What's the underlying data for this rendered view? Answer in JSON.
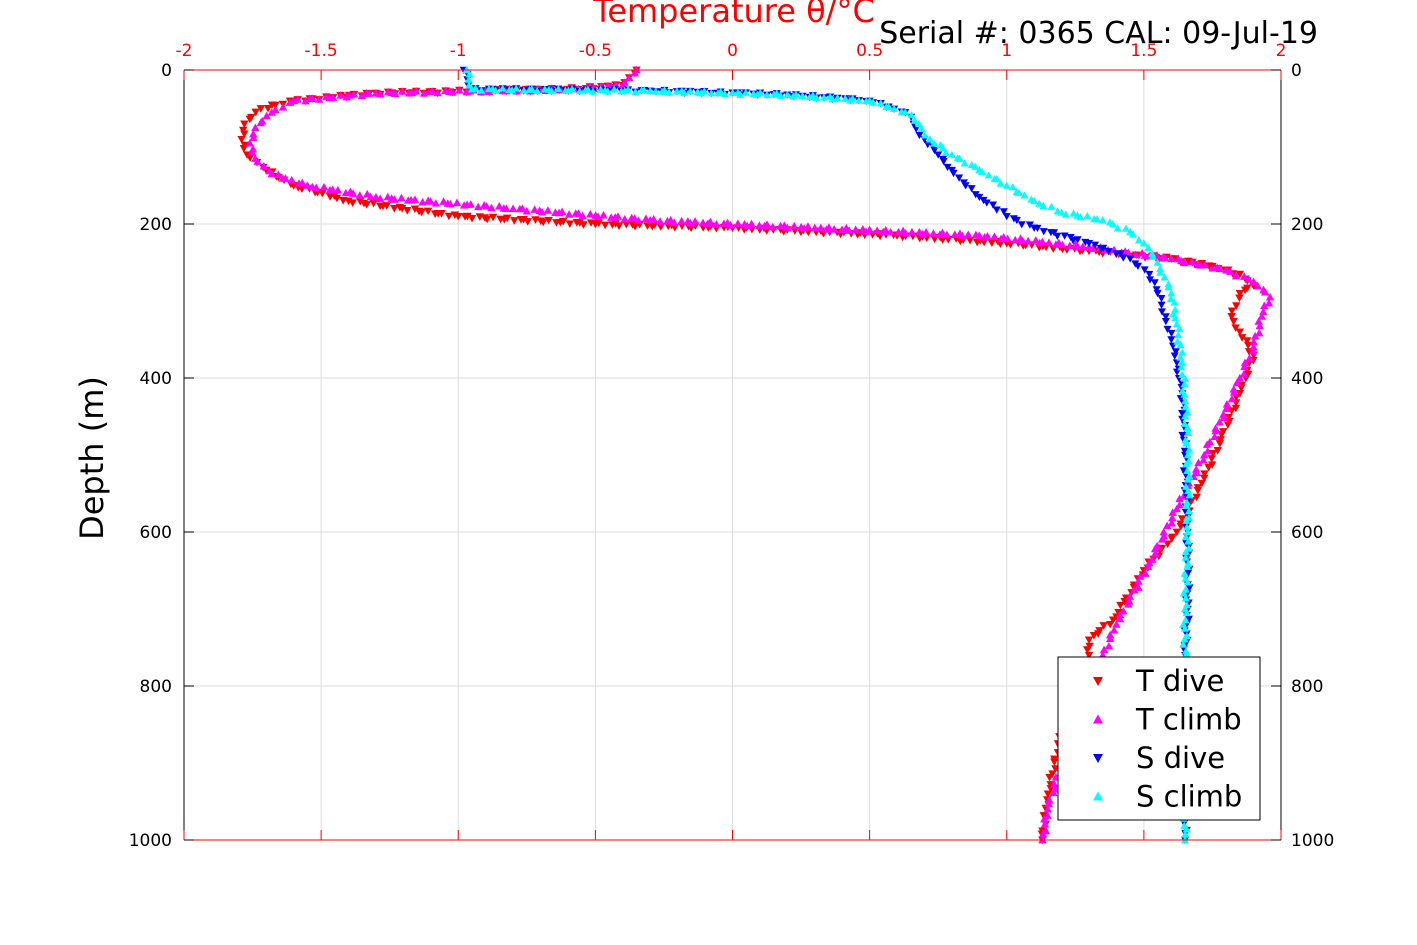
{
  "chart_data": {
    "type": "scatter",
    "title": "Temperature θ/°C",
    "annotation": "Serial #: 0365  CAL: 09-Jul-19",
    "xlabel": "Temperature θ/°C",
    "ylabel": "Depth (m)",
    "xlim": [
      -2,
      2
    ],
    "ylim": [
      0,
      1000
    ],
    "y_reversed": true,
    "grid": true,
    "legend_position": "bottom-right",
    "x_ticks": [
      "-2",
      "-1.5",
      "-1",
      "-0.5",
      "0",
      "0.5",
      "1",
      "1.5",
      "2"
    ],
    "x_tick_values": [
      -2,
      -1.5,
      -1,
      -0.5,
      0,
      0.5,
      1,
      1.5,
      2
    ],
    "y_ticks": [
      "0",
      "200",
      "400",
      "600",
      "800",
      "1000"
    ],
    "y_tick_values": [
      0,
      200,
      400,
      600,
      800,
      1000
    ],
    "colors": {
      "axis_top": "#ff0000",
      "grid": "#dddddd"
    },
    "series": [
      {
        "name": "T dive",
        "color": "#ff0000",
        "marker": "triangle-down",
        "x": [
          -0.35,
          -0.4,
          -0.6,
          -0.9,
          -1.3,
          -1.6,
          -1.72,
          -1.78,
          -1.79,
          -1.77,
          -1.7,
          -1.6,
          -1.4,
          -1.0,
          -0.5,
          0.0,
          0.6,
          1.0,
          1.3,
          1.6,
          1.75,
          1.85,
          1.9,
          1.85,
          1.82,
          1.85,
          1.9,
          1.85,
          1.78,
          1.72,
          1.62,
          1.5,
          1.43,
          1.4,
          1.3,
          1.3,
          1.25,
          1.2,
          1.15,
          1.13
        ],
        "y": [
          0,
          20,
          25,
          27,
          30,
          40,
          50,
          70,
          90,
          110,
          130,
          150,
          170,
          190,
          200,
          205,
          215,
          225,
          235,
          245,
          255,
          265,
          280,
          290,
          320,
          340,
          370,
          420,
          480,
          530,
          600,
          650,
          690,
          710,
          740,
          760,
          800,
          860,
          940,
          1000
        ]
      },
      {
        "name": "T climb",
        "color": "#ff00ff",
        "marker": "triangle-up",
        "x": [
          -0.35,
          -0.4,
          -0.6,
          -0.9,
          -1.3,
          -1.6,
          -1.68,
          -1.74,
          -1.76,
          -1.74,
          -1.68,
          -1.55,
          -1.3,
          -0.8,
          -0.3,
          0.3,
          0.9,
          1.3,
          1.6,
          1.8,
          1.9,
          1.96,
          1.93,
          1.9,
          1.85,
          1.8,
          1.72,
          1.62,
          1.52,
          1.4,
          1.35,
          1.3,
          1.25,
          1.2,
          1.15,
          1.13
        ],
        "y": [
          0,
          20,
          25,
          27,
          30,
          40,
          55,
          75,
          95,
          115,
          135,
          150,
          165,
          180,
          195,
          205,
          215,
          230,
          245,
          260,
          275,
          295,
          320,
          360,
          400,
          440,
          500,
          570,
          640,
          720,
          760,
          800,
          850,
          900,
          960,
          1000
        ]
      },
      {
        "name": "S dive",
        "color": "#0000ff",
        "marker": "triangle-down",
        "x": [
          -0.98,
          -0.95,
          -0.3,
          0.2,
          0.5,
          0.63,
          0.66,
          0.7,
          0.75,
          0.8,
          0.85,
          0.9,
          0.95,
          1.0,
          1.1,
          1.3,
          1.45,
          1.52,
          1.55,
          1.58,
          1.6,
          1.62,
          1.64,
          1.65,
          1.66,
          1.66,
          1.65,
          1.65,
          1.65,
          1.65
        ],
        "y": [
          0,
          25,
          27,
          32,
          40,
          55,
          70,
          90,
          110,
          130,
          150,
          165,
          175,
          190,
          205,
          225,
          245,
          265,
          290,
          320,
          350,
          380,
          420,
          500,
          600,
          700,
          760,
          850,
          950,
          1000
        ]
      },
      {
        "name": "S climb",
        "color": "#00ffff",
        "marker": "triangle-up",
        "x": [
          -0.97,
          -0.95,
          -0.3,
          0.2,
          0.5,
          0.63,
          0.68,
          0.72,
          0.8,
          0.9,
          1.0,
          1.1,
          1.2,
          1.35,
          1.45,
          1.5,
          1.55,
          1.6,
          1.62,
          1.64,
          1.65,
          1.66,
          1.66,
          1.65,
          1.65,
          1.65,
          1.65
        ],
        "y": [
          0,
          25,
          27,
          32,
          40,
          55,
          70,
          90,
          110,
          130,
          150,
          170,
          185,
          195,
          210,
          225,
          250,
          290,
          330,
          380,
          430,
          500,
          600,
          700,
          800,
          900,
          1000
        ]
      }
    ]
  }
}
